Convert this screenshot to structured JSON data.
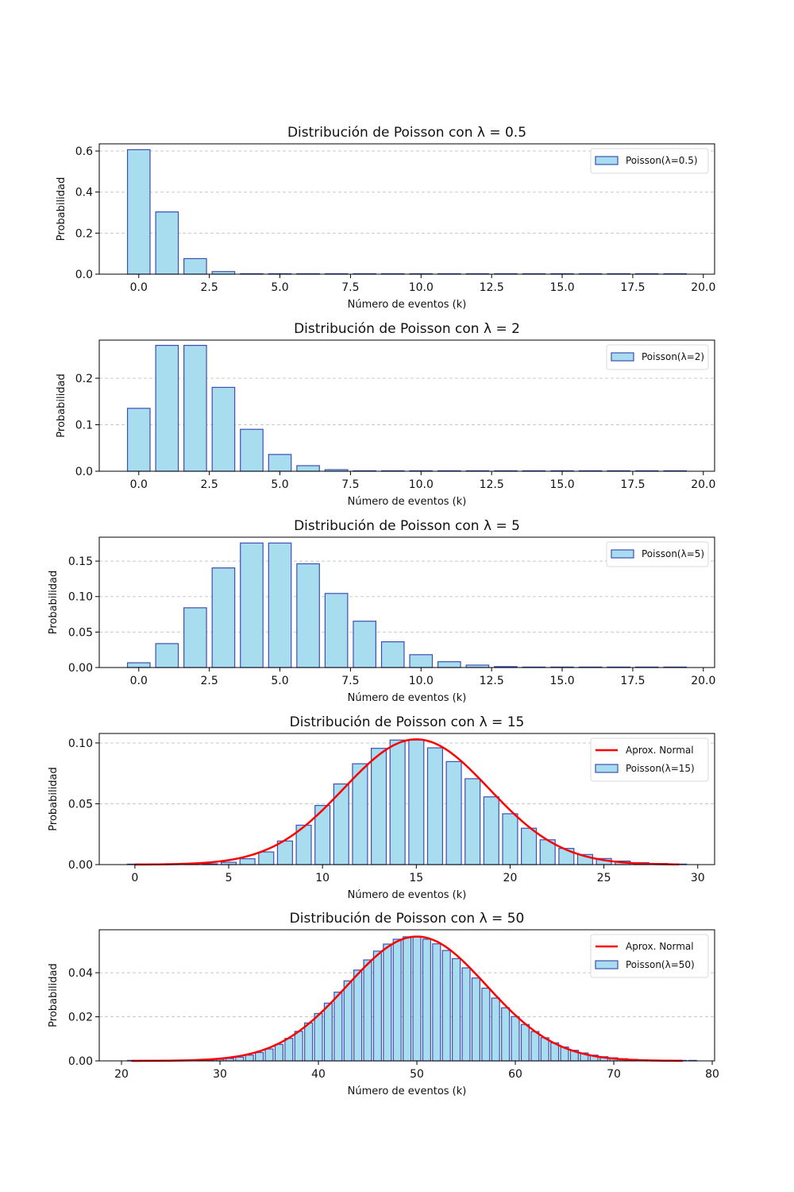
{
  "colors": {
    "bar_fill": "#a8dcef",
    "bar_edge": "#3d4fb3",
    "normal_line": "#ff0000",
    "grid": "#c8c8c8"
  },
  "chart_data": [
    {
      "type": "bar",
      "title": "Distribución de Poisson con λ = 0.5",
      "xlabel": "Número de eventos (k)",
      "ylabel": "Probabilidad",
      "lambda": 0.5,
      "x": [
        0,
        1,
        2,
        3,
        4,
        5,
        6,
        7,
        8,
        9,
        10,
        11,
        12,
        13,
        14,
        15,
        16,
        17,
        18,
        19
      ],
      "values": [
        0.6065,
        0.3033,
        0.0758,
        0.0126,
        0.0016,
        0.0002,
        0.0,
        0.0,
        0.0,
        0.0,
        0.0,
        0.0,
        0.0,
        0.0,
        0.0,
        0.0,
        0.0,
        0.0,
        0.0,
        0.0
      ],
      "xlim": [
        -1.4,
        20.4
      ],
      "ylim": [
        0,
        0.635
      ],
      "xticks": [
        0,
        2.5,
        5,
        7.5,
        10,
        12.5,
        15,
        17.5,
        20
      ],
      "xtick_labels": [
        "0.0",
        "2.5",
        "5.0",
        "7.5",
        "10.0",
        "12.5",
        "15.0",
        "17.5",
        "20.0"
      ],
      "yticks": [
        0,
        0.2,
        0.4,
        0.6
      ],
      "ytick_labels": [
        "0.0",
        "0.2",
        "0.4",
        "0.6"
      ],
      "grid": "y-dashed",
      "legend": {
        "placement": "top-right",
        "entries": [
          {
            "type": "bar",
            "label": "Poisson(λ=0.5)"
          }
        ]
      },
      "normal": null
    },
    {
      "type": "bar",
      "title": "Distribución de Poisson con λ = 2",
      "xlabel": "Número de eventos (k)",
      "ylabel": "Probabilidad",
      "lambda": 2,
      "x": [
        0,
        1,
        2,
        3,
        4,
        5,
        6,
        7,
        8,
        9,
        10,
        11,
        12,
        13,
        14,
        15,
        16,
        17,
        18,
        19
      ],
      "values": [
        0.1353,
        0.2707,
        0.2707,
        0.1804,
        0.0902,
        0.0361,
        0.012,
        0.0034,
        0.0009,
        0.0002,
        0.0,
        0.0,
        0.0,
        0.0,
        0.0,
        0.0,
        0.0,
        0.0,
        0.0,
        0.0
      ],
      "xlim": [
        -1.4,
        20.4
      ],
      "ylim": [
        0,
        0.282
      ],
      "xticks": [
        0,
        2.5,
        5,
        7.5,
        10,
        12.5,
        15,
        17.5,
        20
      ],
      "xtick_labels": [
        "0.0",
        "2.5",
        "5.0",
        "7.5",
        "10.0",
        "12.5",
        "15.0",
        "17.5",
        "20.0"
      ],
      "yticks": [
        0,
        0.1,
        0.2
      ],
      "ytick_labels": [
        "0.0",
        "0.1",
        "0.2"
      ],
      "grid": "y-dashed",
      "legend": {
        "placement": "top-right",
        "entries": [
          {
            "type": "bar",
            "label": "Poisson(λ=2)"
          }
        ]
      },
      "normal": null
    },
    {
      "type": "bar",
      "title": "Distribución de Poisson con λ = 5",
      "xlabel": "Número de eventos (k)",
      "ylabel": "Probabilidad",
      "lambda": 5,
      "x": [
        0,
        1,
        2,
        3,
        4,
        5,
        6,
        7,
        8,
        9,
        10,
        11,
        12,
        13,
        14,
        15,
        16,
        17,
        18,
        19
      ],
      "values": [
        0.0067,
        0.0337,
        0.0842,
        0.1404,
        0.1755,
        0.1755,
        0.1462,
        0.1044,
        0.0653,
        0.0363,
        0.0181,
        0.0082,
        0.0034,
        0.0013,
        0.0005,
        0.0002,
        0.0,
        0.0,
        0.0,
        0.0
      ],
      "xlim": [
        -1.4,
        20.4
      ],
      "ylim": [
        0,
        0.1837
      ],
      "xticks": [
        0,
        2.5,
        5,
        7.5,
        10,
        12.5,
        15,
        17.5,
        20
      ],
      "xtick_labels": [
        "0.0",
        "2.5",
        "5.0",
        "7.5",
        "10.0",
        "12.5",
        "15.0",
        "17.5",
        "20.0"
      ],
      "yticks": [
        0,
        0.05,
        0.1,
        0.15
      ],
      "ytick_labels": [
        "0.00",
        "0.05",
        "0.10",
        "0.15"
      ],
      "grid": "y-dashed",
      "legend": {
        "placement": "top-right",
        "entries": [
          {
            "type": "bar",
            "label": "Poisson(λ=5)"
          }
        ]
      },
      "normal": null
    },
    {
      "type": "bar",
      "title": "Distribución de Poisson con λ = 15",
      "xlabel": "Número de eventos (k)",
      "ylabel": "Probabilidad",
      "lambda": 15,
      "x": [
        0,
        1,
        2,
        3,
        4,
        5,
        6,
        7,
        8,
        9,
        10,
        11,
        12,
        13,
        14,
        15,
        16,
        17,
        18,
        19,
        20,
        21,
        22,
        23,
        24,
        25,
        26,
        27,
        28,
        29
      ],
      "values": [
        0.0,
        0.0,
        0.0,
        0.0002,
        0.0006,
        0.0019,
        0.0048,
        0.0104,
        0.0194,
        0.0324,
        0.0486,
        0.0663,
        0.0829,
        0.0956,
        0.1024,
        0.1024,
        0.096,
        0.0847,
        0.0706,
        0.0557,
        0.0418,
        0.0299,
        0.0204,
        0.0133,
        0.0083,
        0.005,
        0.0029,
        0.0016,
        0.0009,
        0.0004
      ],
      "xlim": [
        -1.9,
        30.9
      ],
      "ylim": [
        0,
        0.1078
      ],
      "xticks": [
        0,
        5,
        10,
        15,
        20,
        25,
        30
      ],
      "xtick_labels": [
        "0",
        "5",
        "10",
        "15",
        "20",
        "25",
        "30"
      ],
      "yticks": [
        0,
        0.05,
        0.1
      ],
      "ytick_labels": [
        "0.00",
        "0.05",
        "0.10"
      ],
      "grid": "y-dashed",
      "legend": {
        "placement": "top-right",
        "entries": [
          {
            "type": "line",
            "label": "Aprox. Normal"
          },
          {
            "type": "bar",
            "label": "Poisson(λ=15)"
          }
        ]
      },
      "normal": {
        "mu": 15,
        "sigma": 3.873,
        "x_from": 0,
        "x_to": 29
      }
    },
    {
      "type": "bar",
      "title": "Distribución de Poisson con λ = 50",
      "xlabel": "Número de eventos (k)",
      "ylabel": "Probabilidad",
      "lambda": 50,
      "x": [
        21,
        22,
        23,
        24,
        25,
        26,
        27,
        28,
        29,
        30,
        31,
        32,
        33,
        34,
        35,
        36,
        37,
        38,
        39,
        40,
        41,
        42,
        43,
        44,
        45,
        46,
        47,
        48,
        49,
        50,
        51,
        52,
        53,
        54,
        55,
        56,
        57,
        58,
        59,
        60,
        61,
        62,
        63,
        64,
        65,
        66,
        67,
        68,
        69,
        70,
        71,
        72,
        73,
        74,
        75,
        76,
        77,
        78
      ],
      "values": [
        0.0,
        0.0,
        0.0,
        0.0,
        0.0,
        0.0001,
        0.0001,
        0.0002,
        0.0004,
        0.0007,
        0.0011,
        0.0017,
        0.0026,
        0.0038,
        0.0054,
        0.0075,
        0.0102,
        0.0134,
        0.0172,
        0.0215,
        0.0262,
        0.0312,
        0.0363,
        0.0412,
        0.0458,
        0.0498,
        0.053,
        0.0552,
        0.0563,
        0.0563,
        0.0552,
        0.0531,
        0.0501,
        0.0464,
        0.0422,
        0.0376,
        0.033,
        0.0285,
        0.0241,
        0.0201,
        0.0165,
        0.0133,
        0.0105,
        0.0082,
        0.0063,
        0.0048,
        0.0036,
        0.0026,
        0.0019,
        0.0014,
        0.001,
        0.0007,
        0.0005,
        0.0003,
        0.0002,
        0.0001,
        0.0001,
        0.0001
      ],
      "xlim": [
        17.74,
        80.24
      ],
      "ylim": [
        0,
        0.0595
      ],
      "xticks": [
        20,
        30,
        40,
        50,
        60,
        70,
        80
      ],
      "xtick_labels": [
        "20",
        "30",
        "40",
        "50",
        "60",
        "70",
        "80"
      ],
      "yticks": [
        0,
        0.02,
        0.04
      ],
      "ytick_labels": [
        "0.00",
        "0.02",
        "0.04"
      ],
      "grid": "y-dashed",
      "legend": {
        "placement": "top-right",
        "entries": [
          {
            "type": "line",
            "label": "Aprox. Normal"
          },
          {
            "type": "bar",
            "label": "Poisson(λ=50)"
          }
        ]
      },
      "normal": {
        "mu": 50,
        "sigma": 7.071,
        "x_from": 21,
        "x_to": 77
      }
    }
  ]
}
